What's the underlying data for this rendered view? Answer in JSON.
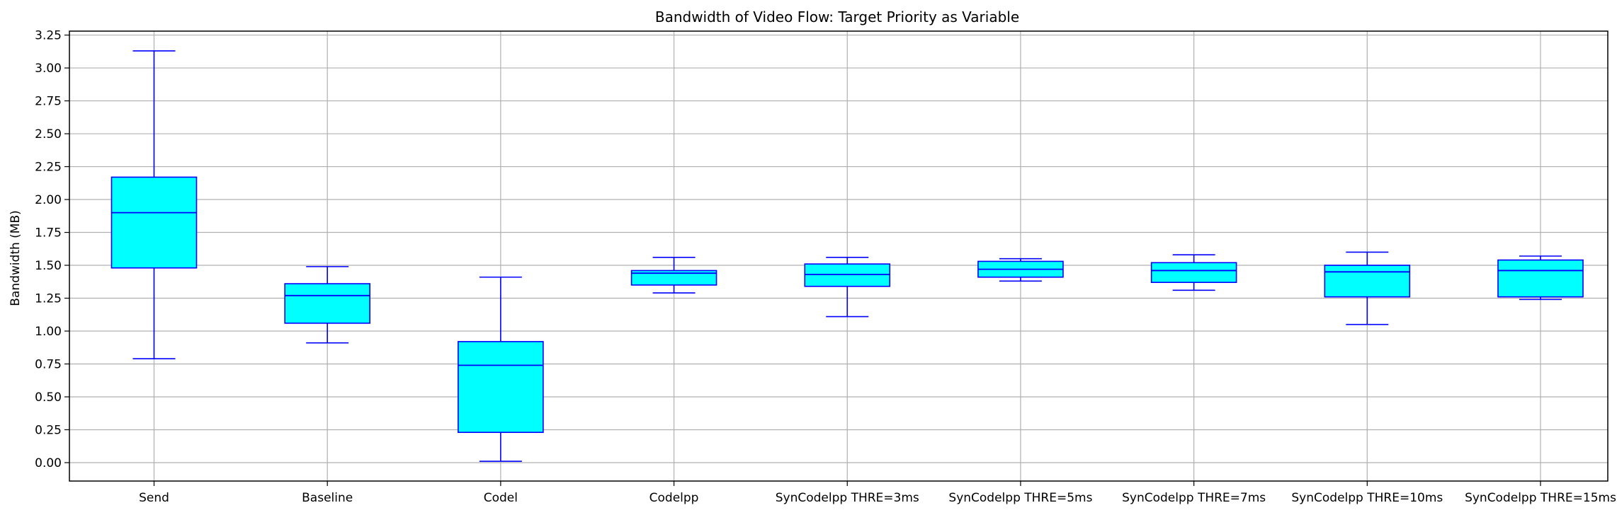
{
  "chart_data": {
    "type": "box",
    "title": "Bandwidth of Video Flow: Target Priority as Variable",
    "xlabel": "",
    "ylabel": "Bandwidth (MB)",
    "ylim": [
      -0.14,
      3.28
    ],
    "yticks": [
      "0.00",
      "0.25",
      "0.50",
      "0.75",
      "1.00",
      "1.25",
      "1.50",
      "1.75",
      "2.00",
      "2.25",
      "2.50",
      "2.75",
      "3.00",
      "3.25"
    ],
    "grid": true,
    "box_color": "#00ffff",
    "line_color": "#0000ff",
    "categories": [
      "Send",
      "Baseline",
      "Codel",
      "Codelpp",
      "SynCodelpp THRE=3ms",
      "SynCodelpp THRE=5ms",
      "SynCodelpp THRE=7ms",
      "SynCodelpp THRE=10ms",
      "SynCodelpp THRE=15ms"
    ],
    "boxes": [
      {
        "whisker_low": 0.79,
        "q1": 1.48,
        "median": 1.9,
        "q3": 2.17,
        "whisker_high": 3.13
      },
      {
        "whisker_low": 0.91,
        "q1": 1.06,
        "median": 1.27,
        "q3": 1.36,
        "whisker_high": 1.49
      },
      {
        "whisker_low": 0.01,
        "q1": 0.23,
        "median": 0.74,
        "q3": 0.92,
        "whisker_high": 1.41
      },
      {
        "whisker_low": 1.29,
        "q1": 1.35,
        "median": 1.44,
        "q3": 1.46,
        "whisker_high": 1.56
      },
      {
        "whisker_low": 1.11,
        "q1": 1.34,
        "median": 1.43,
        "q3": 1.51,
        "whisker_high": 1.56
      },
      {
        "whisker_low": 1.38,
        "q1": 1.41,
        "median": 1.47,
        "q3": 1.53,
        "whisker_high": 1.55
      },
      {
        "whisker_low": 1.31,
        "q1": 1.37,
        "median": 1.46,
        "q3": 1.52,
        "whisker_high": 1.58
      },
      {
        "whisker_low": 1.05,
        "q1": 1.26,
        "median": 1.45,
        "q3": 1.5,
        "whisker_high": 1.6
      },
      {
        "whisker_low": 1.24,
        "q1": 1.26,
        "median": 1.46,
        "q3": 1.54,
        "whisker_high": 1.57
      }
    ]
  }
}
